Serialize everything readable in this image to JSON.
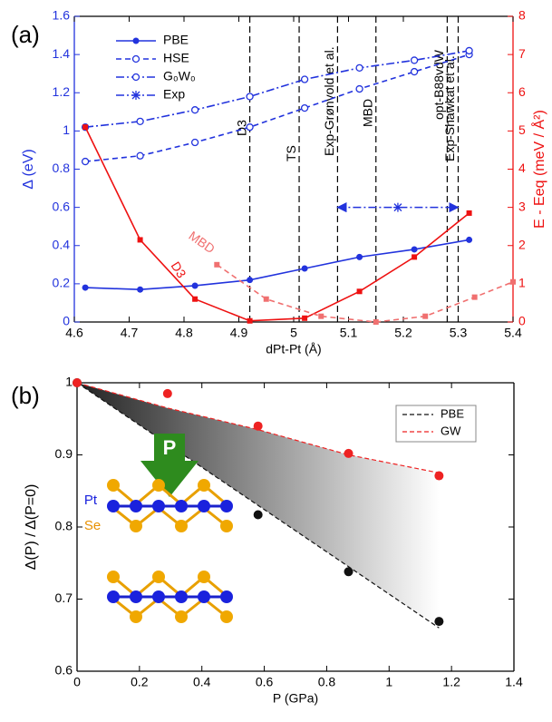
{
  "chart_data": [
    {
      "type": "line",
      "panel_label": "(a)",
      "xlabel": "dPt-Pt (Å)",
      "ylabel": "Δ (eV)",
      "y2label": "E - Eeq (meV / Å²)",
      "xlim": [
        4.6,
        5.4
      ],
      "xticks": [
        4.6,
        4.7,
        4.8,
        4.9,
        5,
        5.1,
        5.2,
        5.3,
        5.4
      ],
      "ylim": [
        0,
        1.6
      ],
      "yticks": [
        0,
        0.2,
        0.4,
        0.6,
        0.8,
        1,
        1.2,
        1.4,
        1.6
      ],
      "y2lim": [
        0,
        8
      ],
      "y2ticks": [
        0,
        1,
        2,
        3,
        4,
        5,
        6,
        7,
        8
      ],
      "y_color": "#2233dd",
      "y2_color": "#ee1111",
      "legend": "upper left",
      "series": [
        {
          "name": "PBE",
          "color": "#2233dd",
          "style": "solid",
          "marker": "filled-circle",
          "x": [
            4.62,
            4.72,
            4.82,
            4.92,
            5.02,
            5.12,
            5.22,
            5.32
          ],
          "values": [
            0.18,
            0.17,
            0.19,
            0.22,
            0.28,
            0.34,
            0.38,
            0.43
          ]
        },
        {
          "name": "HSE",
          "color": "#2233dd",
          "style": "dashed",
          "marker": "open-circle",
          "x": [
            4.62,
            4.72,
            4.82,
            4.92,
            5.02,
            5.12,
            5.22,
            5.32
          ],
          "values": [
            0.84,
            0.87,
            0.94,
            1.02,
            1.12,
            1.22,
            1.31,
            1.4
          ]
        },
        {
          "name": "G₀W₀",
          "color": "#2233dd",
          "style": "dashdot",
          "marker": "open-circle",
          "x": [
            4.62,
            4.72,
            4.82,
            4.92,
            5.02,
            5.12,
            5.22,
            5.32
          ],
          "values": [
            1.02,
            1.05,
            1.11,
            1.18,
            1.27,
            1.33,
            1.37,
            1.42
          ]
        },
        {
          "name": "Exp",
          "color": "#2233dd",
          "style": "dashdot",
          "marker": "star",
          "arrows": true,
          "x": [
            5.08,
            5.19,
            5.3
          ],
          "values": [
            0.6,
            0.6,
            0.6
          ]
        },
        {
          "color": "#ee1111",
          "style": "solid",
          "marker": "filled-square",
          "axis": "y2",
          "x": [
            4.62,
            4.72,
            4.82,
            4.92,
            5.02,
            5.12,
            5.22,
            5.32
          ],
          "values": [
            5.1,
            2.15,
            0.6,
            0.03,
            0.1,
            0.8,
            1.7,
            2.85
          ]
        },
        {
          "color": "#f07070",
          "style": "dashed",
          "marker": "filled-square",
          "axis": "y2",
          "x": [
            4.86,
            4.95,
            5.05,
            5.15,
            5.24,
            5.33,
            5.4
          ],
          "values": [
            1.5,
            0.6,
            0.15,
            0.0,
            0.15,
            0.65,
            1.05
          ]
        }
      ],
      "vlines": [
        {
          "x": 4.92,
          "label": "D3"
        },
        {
          "x": 5.01,
          "label": "TS"
        },
        {
          "x": 5.08,
          "label": "Exp-Grønvold et al."
        },
        {
          "x": 5.15,
          "label": "MBD"
        },
        {
          "x": 5.28,
          "label": "opt-B88vdW"
        },
        {
          "x": 5.3,
          "label": "Exp-Shawkat et al."
        }
      ],
      "annotations": [
        {
          "text": "D3"
        },
        {
          "text": "MBD"
        }
      ]
    },
    {
      "type": "scatter",
      "panel_label": "(b)",
      "xlabel": "P (GPa)",
      "ylabel": "Δ(P) / Δ(P=0)",
      "xlim": [
        0,
        1.4
      ],
      "xticks": [
        0,
        0.2,
        0.4,
        0.6,
        0.8,
        1,
        1.2,
        1.4
      ],
      "ylim": [
        0.6,
        1
      ],
      "yticks": [
        0.6,
        0.7,
        0.8,
        0.9,
        1
      ],
      "legend": "upper right",
      "shade": true,
      "series": [
        {
          "name": "PBE",
          "color": "#111111",
          "x": [
            0,
            0.29,
            0.58,
            0.87,
            1.16
          ],
          "values": [
            1.0,
            0.905,
            0.817,
            0.738,
            0.669
          ],
          "fit_x": [
            0,
            1.16
          ],
          "fit_values": [
            1.0,
            0.66
          ]
        },
        {
          "name": "GW",
          "color": "#ee2222",
          "x": [
            0,
            0.29,
            0.58,
            0.87,
            1.16
          ],
          "values": [
            1.0,
            0.985,
            0.94,
            0.902,
            0.871
          ],
          "fit_x": [
            0,
            0.29,
            0.58,
            0.87,
            1.16
          ],
          "fit_values": [
            1.0,
            0.965,
            0.935,
            0.9,
            0.875
          ]
        }
      ],
      "annotations": [
        {
          "text": "P"
        },
        {
          "text": "Pt"
        },
        {
          "text": "Se"
        }
      ]
    }
  ]
}
